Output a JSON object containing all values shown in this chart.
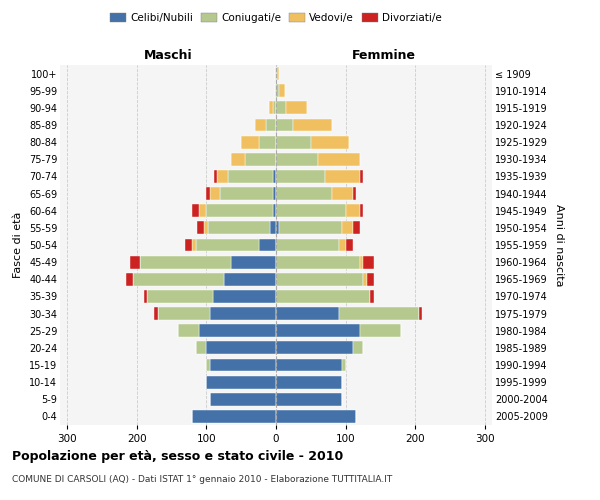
{
  "age_groups": [
    "0-4",
    "5-9",
    "10-14",
    "15-19",
    "20-24",
    "25-29",
    "30-34",
    "35-39",
    "40-44",
    "45-49",
    "50-54",
    "55-59",
    "60-64",
    "65-69",
    "70-74",
    "75-79",
    "80-84",
    "85-89",
    "90-94",
    "95-99",
    "100+"
  ],
  "birth_years": [
    "2005-2009",
    "2000-2004",
    "1995-1999",
    "1990-1994",
    "1985-1989",
    "1980-1984",
    "1975-1979",
    "1970-1974",
    "1965-1969",
    "1960-1964",
    "1955-1959",
    "1950-1954",
    "1945-1949",
    "1940-1944",
    "1935-1939",
    "1930-1934",
    "1925-1929",
    "1920-1924",
    "1915-1919",
    "1910-1914",
    "≤ 1909"
  ],
  "male_celibi": [
    120,
    95,
    100,
    95,
    100,
    110,
    95,
    90,
    75,
    65,
    25,
    8,
    5,
    5,
    4,
    0,
    0,
    0,
    0,
    0,
    0
  ],
  "male_coniugati": [
    0,
    0,
    0,
    5,
    15,
    30,
    75,
    95,
    130,
    130,
    90,
    90,
    95,
    75,
    65,
    45,
    25,
    15,
    5,
    2,
    1
  ],
  "male_vedovi": [
    0,
    0,
    0,
    0,
    0,
    0,
    0,
    0,
    0,
    0,
    5,
    5,
    10,
    15,
    15,
    20,
    25,
    15,
    5,
    0,
    0
  ],
  "male_divorziati": [
    0,
    0,
    0,
    0,
    0,
    0,
    5,
    5,
    10,
    15,
    10,
    10,
    10,
    5,
    5,
    0,
    0,
    0,
    0,
    0,
    0
  ],
  "female_celibi": [
    115,
    95,
    95,
    95,
    110,
    120,
    90,
    0,
    0,
    0,
    0,
    5,
    0,
    0,
    0,
    0,
    0,
    0,
    0,
    0,
    0
  ],
  "female_coniugati": [
    0,
    0,
    0,
    5,
    15,
    60,
    115,
    135,
    125,
    120,
    90,
    90,
    100,
    80,
    70,
    60,
    50,
    25,
    15,
    5,
    2
  ],
  "female_vedovi": [
    0,
    0,
    0,
    0,
    0,
    0,
    0,
    0,
    5,
    5,
    10,
    15,
    20,
    30,
    50,
    60,
    55,
    55,
    30,
    8,
    3
  ],
  "female_divorziati": [
    0,
    0,
    0,
    0,
    0,
    0,
    5,
    5,
    10,
    15,
    10,
    10,
    5,
    5,
    5,
    0,
    0,
    0,
    0,
    0,
    0
  ],
  "color_celibi": "#4472a8",
  "color_coniugati": "#b5c98e",
  "color_vedovi": "#f0c060",
  "color_divorziati": "#cc2222",
  "xlim": 310,
  "title": "Popolazione per età, sesso e stato civile - 2010",
  "subtitle": "COMUNE DI CARSOLI (AQ) - Dati ISTAT 1° gennaio 2010 - Elaborazione TUTTITALIA.IT",
  "ylabel_left": "Fasce di età",
  "ylabel_right": "Anni di nascita",
  "xlabel_left": "Maschi",
  "xlabel_right": "Femmine"
}
